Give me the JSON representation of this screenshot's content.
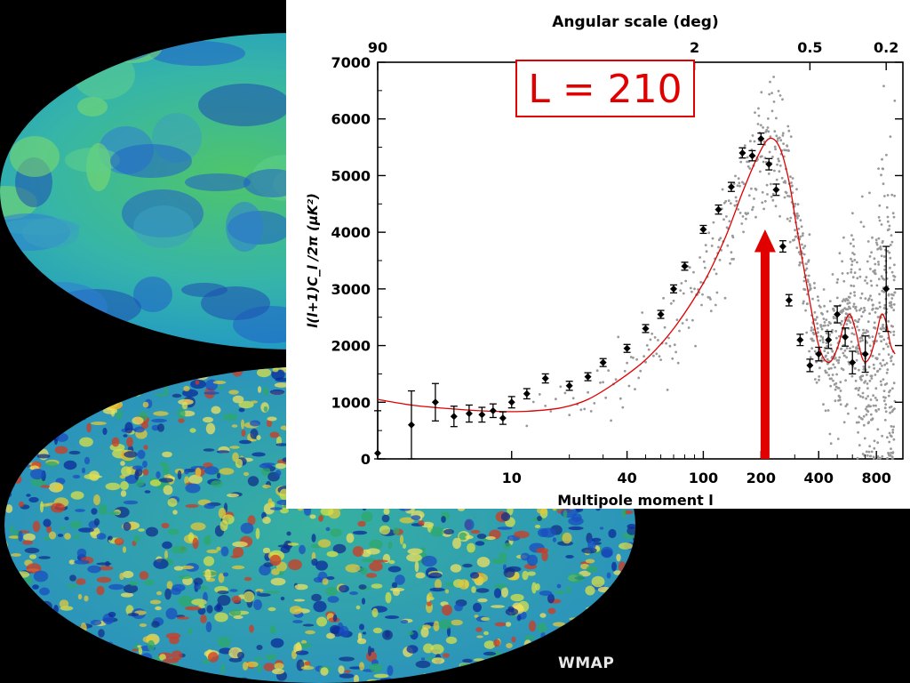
{
  "caption": "WMAP",
  "annotation": {
    "label": "L = 210",
    "color": "#e00000"
  },
  "colors": {
    "fit_curve": "#e00000",
    "points": "#000000",
    "scatter": "#999999",
    "arrow": "#e00000"
  },
  "chart_data": {
    "type": "scatter",
    "title": "",
    "top_axis": {
      "label": "Angular scale (deg)",
      "ticks": [
        "90",
        "2",
        "0.5",
        "0.2"
      ],
      "tick_positions_multipole": [
        2,
        90,
        360,
        900
      ]
    },
    "xlabel": "Multipole moment l",
    "ylabel": "l(l+1)C_l /2π (μK²)",
    "x_scale": "log",
    "x_ticks": [
      10,
      40,
      100,
      200,
      400,
      800
    ],
    "x_tick_labels": [
      "10",
      "40",
      "100",
      "200",
      "400",
      "800"
    ],
    "xlim": [
      2,
      1100
    ],
    "ylim": [
      0,
      7000
    ],
    "y_ticks": [
      0,
      1000,
      2000,
      3000,
      4000,
      5000,
      6000,
      7000
    ],
    "y_tick_labels": [
      "0",
      "1000",
      "2000",
      "3000",
      "4000",
      "5000",
      "6000",
      "7000"
    ],
    "grid": false,
    "series": [
      {
        "kind": "binned-with-errors",
        "x": [
          2,
          3,
          4,
          5,
          6,
          7,
          8,
          9,
          10,
          12,
          15,
          20,
          25,
          30,
          40,
          50,
          60,
          70,
          80,
          100,
          120,
          140,
          160,
          180,
          200,
          220,
          240,
          260,
          280,
          320,
          360,
          400,
          450,
          500,
          550,
          600,
          700,
          900
        ],
        "y": [
          100,
          600,
          1000,
          750,
          800,
          780,
          850,
          720,
          1000,
          1150,
          1420,
          1290,
          1450,
          1700,
          1950,
          2300,
          2550,
          3000,
          3400,
          4050,
          4400,
          4800,
          5400,
          5350,
          5650,
          5200,
          4750,
          3750,
          2800,
          2100,
          1650,
          1850,
          2100,
          2550,
          2150,
          1700,
          1850,
          3000
        ],
        "err": [
          750,
          600,
          330,
          180,
          150,
          130,
          120,
          110,
          100,
          90,
          80,
          80,
          70,
          70,
          70,
          70,
          70,
          70,
          70,
          70,
          80,
          80,
          90,
          90,
          100,
          100,
          100,
          100,
          100,
          100,
          110,
          120,
          150,
          150,
          160,
          200,
          320,
          750
        ]
      },
      {
        "kind": "model-fit",
        "x": [
          2,
          3,
          5,
          8,
          12,
          18,
          25,
          35,
          50,
          70,
          100,
          130,
          160,
          190,
          220,
          250,
          280,
          310,
          350,
          400,
          450,
          500,
          540,
          580,
          620,
          680,
          740,
          800,
          850,
          900,
          950,
          1000
        ],
        "y": [
          1050,
          950,
          880,
          840,
          840,
          900,
          1050,
          1350,
          1750,
          2300,
          3100,
          3900,
          4700,
          5300,
          5650,
          5500,
          4900,
          4000,
          3000,
          2000,
          1700,
          1950,
          2350,
          2550,
          2300,
          1750,
          1800,
          2200,
          2550,
          2400,
          2000,
          1850
        ]
      }
    ]
  }
}
